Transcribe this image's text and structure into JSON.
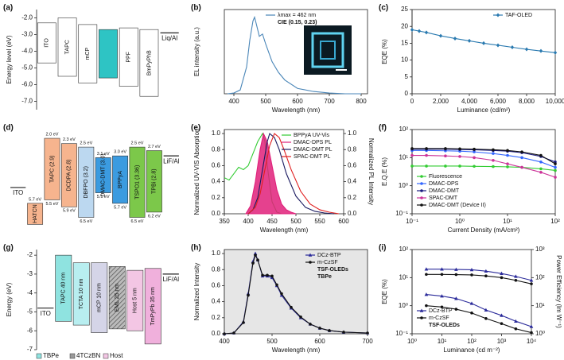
{
  "chart_data": [
    {
      "type": "energy-diagram",
      "panel_label": "(a)",
      "ylabel": "Energy level (eV)",
      "ylim": [
        -7.5,
        -1.5
      ],
      "yticks": [
        {
          "value": -2,
          "label": "-2.0"
        },
        {
          "value": -3,
          "label": "-3.0"
        },
        {
          "value": -4,
          "label": "-4.0"
        },
        {
          "value": -5,
          "label": "-5.0"
        },
        {
          "value": -6,
          "label": "-6.0"
        },
        {
          "value": -7,
          "label": "-7.0"
        }
      ],
      "layers": [
        {
          "name": "ITO",
          "top": -2.3,
          "bottom": -4.7,
          "color": "#ffffff"
        },
        {
          "name": "TAPC",
          "top": -2.0,
          "bottom": -5.5,
          "color": "#ffffff"
        },
        {
          "name": "mCP",
          "top": -2.4,
          "bottom": -5.9,
          "color": "#ffffff"
        },
        {
          "top": -2.7,
          "bottom": -5.6,
          "color": "#2ec4c4"
        },
        {
          "name": "PPF",
          "top": -2.6,
          "bottom": -6.1,
          "color": "#ffffff"
        },
        {
          "name": "BmPyPhB",
          "top": -2.7,
          "bottom": -6.7,
          "color": "#ffffff"
        },
        {
          "name": "Liq/Al",
          "top": -2.9,
          "bottom": null,
          "color": "#222222"
        }
      ]
    },
    {
      "type": "line",
      "panel_label": "(b)",
      "xlabel": "Wavelength (nm)",
      "ylabel": "EL intensity (a.u.)",
      "xlim": [
        370,
        820
      ],
      "ylim": [
        0,
        1.1
      ],
      "xticks": [
        400,
        500,
        600,
        700,
        800
      ],
      "legend": "upper center",
      "x": [
        380,
        400,
        420,
        440,
        450,
        460,
        465,
        470,
        480,
        490,
        500,
        520,
        540,
        560,
        600,
        650,
        700,
        750,
        800
      ],
      "series": [
        {
          "name": "λmax = 462 nm",
          "color": "#4a86b8",
          "values": [
            0,
            0.01,
            0.05,
            0.35,
            0.7,
            0.95,
            1.0,
            0.92,
            0.75,
            0.78,
            0.65,
            0.42,
            0.28,
            0.18,
            0.07,
            0.03,
            0.01,
            0,
            0
          ]
        }
      ],
      "annotations": [
        "CIE (0.15, 0.23)"
      ]
    },
    {
      "type": "line",
      "panel_label": "(c)",
      "xlabel": "Luminance (cd/m²)",
      "ylabel": "EQE (%)",
      "xlim": [
        0,
        10000
      ],
      "ylim": [
        0,
        25
      ],
      "xticks": [
        0,
        {
          "value": 2000,
          "label": "2,000"
        },
        {
          "value": 4000,
          "label": "4,000"
        },
        {
          "value": 6000,
          "label": "6,000"
        },
        {
          "value": 8000,
          "label": "8,000"
        },
        {
          "value": 10000,
          "label": "10,000"
        }
      ],
      "yticks": [
        0,
        5,
        10,
        15,
        20,
        25
      ],
      "legend": "upper right",
      "x": [
        0,
        500,
        1000,
        2000,
        3000,
        4000,
        5000,
        6000,
        7000,
        8000,
        9000,
        10000
      ],
      "series": [
        {
          "name": "TAF-OLED",
          "color": "#2a7ab0",
          "marker": "diamond",
          "values": [
            19,
            18.6,
            18.2,
            17.2,
            16.4,
            15.7,
            15,
            14.4,
            13.8,
            13.2,
            12.7,
            12.2
          ]
        }
      ]
    },
    {
      "type": "energy-diagram",
      "panel_label": "(d)",
      "ylim": [
        7.2,
        1.5
      ],
      "layers": [
        {
          "name": "ITO",
          "top": 4.8,
          "bottom": null,
          "color": "#222222"
        },
        {
          "name": "HATCN",
          "top": 5.7,
          "bottom": 6.9,
          "color": "#f6b48e",
          "top_label": "5.7 eV"
        },
        {
          "name": "TAPC (2.9)",
          "top": 2.0,
          "bottom": 5.5,
          "color": "#f6b48e",
          "top_label": "2.0 eV",
          "bottom_label": "5.5 eV"
        },
        {
          "name": "DCDPA (2.8)",
          "top": 2.3,
          "bottom": 5.9,
          "color": "#f6b48e",
          "top_label": "2.3 eV",
          "bottom_label": "5.9 eV"
        },
        {
          "name": "DBFPO (3.2)",
          "top": 2.5,
          "bottom": 6.5,
          "color": "#bcd8f0",
          "top_label": "2.5 eV",
          "bottom_label": "6.5 eV"
        },
        {
          "name": "DMAC-DMT (3.0)",
          "top": 3.1,
          "bottom": 5.1,
          "color": "#3b9be0",
          "top_label": "3.1 eV",
          "bottom_label": "5.1 eV"
        },
        {
          "name": "BPPyA",
          "top": 3.0,
          "bottom": 5.7,
          "color": "#3b9be0",
          "top_label": "3.0 eV",
          "bottom_label": "5.7 eV"
        },
        {
          "name": "TSPO1 (3.36)",
          "top": 2.5,
          "bottom": 6.5,
          "color": "#7cc84a",
          "top_label": "2.5 eV",
          "bottom_label": "6.5 eV"
        },
        {
          "name": "TPBi (2.8)",
          "top": 2.7,
          "bottom": 6.2,
          "color": "#7cc84a",
          "top_label": "2.7 eV",
          "bottom_label": "6.2 eV"
        },
        {
          "name": "LiF/Al",
          "top": 3.0,
          "bottom": null,
          "color": "#222222"
        }
      ]
    },
    {
      "type": "line",
      "panel_label": "(e)",
      "xlabel": "Wavelength (nm)",
      "ylabel": "Normalized UV-VIS Absorption",
      "y2label": "Normalized PL Intensity",
      "xlim": [
        350,
        600
      ],
      "ylim": [
        0,
        1.05
      ],
      "y2lim": [
        0,
        1.05
      ],
      "xticks": [
        350,
        400,
        450,
        500,
        550,
        600
      ],
      "yticks": [
        {
          "value": 0,
          "label": "0.0"
        },
        {
          "value": 0.2,
          "label": "0.2"
        },
        {
          "value": 0.4,
          "label": "0.4"
        },
        {
          "value": 0.6,
          "label": "0.6"
        },
        {
          "value": 0.8,
          "label": "0.8"
        },
        {
          "value": 1,
          "label": "1.0"
        }
      ],
      "y2ticks": [
        {
          "value": 0,
          "label": "0.0"
        },
        {
          "value": 0.2,
          "label": "0.2"
        },
        {
          "value": 0.4,
          "label": "0.4"
        },
        {
          "value": 0.6,
          "label": "0.6"
        },
        {
          "value": 0.8,
          "label": "0.8"
        },
        {
          "value": 1,
          "label": "1.0"
        }
      ],
      "legend": "upper right",
      "series": [
        {
          "name": "BPPyA UV-Vis",
          "color": "#33cc33",
          "x": [
            350,
            360,
            370,
            380,
            390,
            400,
            410,
            420,
            430,
            435,
            440,
            450,
            460,
            470
          ],
          "values": [
            0.45,
            0.42,
            0.5,
            0.58,
            0.55,
            0.6,
            0.75,
            0.9,
            1.0,
            0.9,
            0.6,
            0.15,
            0.02,
            0
          ]
        },
        {
          "name": "DMAC-DPS PL",
          "color": "#e0207a",
          "fill": true,
          "axis": "y2",
          "x": [
            395,
            405,
            415,
            425,
            432,
            440,
            450,
            460,
            470,
            480,
            490,
            500
          ],
          "values": [
            0,
            0.1,
            0.4,
            0.8,
            1.0,
            0.9,
            0.6,
            0.3,
            0.12,
            0.05,
            0.02,
            0
          ]
        },
        {
          "name": "DMAC-DMT PL",
          "color": "#1a1a60",
          "axis": "y2",
          "x": [
            400,
            410,
            420,
            430,
            440,
            445,
            455,
            465,
            480,
            500,
            520,
            540,
            560,
            580
          ],
          "values": [
            0,
            0.05,
            0.2,
            0.55,
            0.9,
            1.0,
            0.95,
            0.8,
            0.5,
            0.22,
            0.08,
            0.03,
            0.01,
            0
          ]
        },
        {
          "name": "SPAC-DMT PL",
          "color": "#e02020",
          "axis": "y2",
          "x": [
            400,
            415,
            425,
            435,
            445,
            455,
            465,
            475,
            490,
            510,
            530,
            550,
            570,
            590
          ],
          "values": [
            0,
            0.08,
            0.25,
            0.55,
            0.85,
            1.0,
            0.95,
            0.8,
            0.55,
            0.28,
            0.12,
            0.05,
            0.02,
            0
          ]
        }
      ]
    },
    {
      "type": "line",
      "panel_label": "(f)",
      "xlabel": "Current Density (mA/cm²)",
      "ylabel": "E.Q.E (%)",
      "xscale": "log",
      "yscale": "log",
      "xlim": [
        0.1,
        100
      ],
      "ylim": [
        0.1,
        100
      ],
      "xticks": [
        {
          "value": 0.1,
          "label": "10⁻¹"
        },
        {
          "value": 1,
          "label": "10⁰"
        },
        {
          "value": 10,
          "label": "10¹"
        },
        {
          "value": 100,
          "label": "10²"
        }
      ],
      "yticks": [
        {
          "value": 0.1,
          "label": "10⁻¹"
        },
        {
          "value": 1,
          "label": "10⁰"
        },
        {
          "value": 10,
          "label": "10¹"
        },
        {
          "value": 100,
          "label": "10²"
        }
      ],
      "legend": "lower left",
      "x": [
        0.1,
        0.2,
        0.5,
        1,
        2,
        5,
        10,
        20,
        50,
        100
      ],
      "series": [
        {
          "name": "Fluorescence",
          "color": "#33cc33",
          "marker": "circle",
          "values": [
            5,
            5,
            5,
            5,
            4.9,
            4.8,
            4.7,
            4.5,
            4,
            3.5
          ]
        },
        {
          "name": "DMAC-DPS",
          "color": "#3366ff",
          "marker": "circle",
          "values": [
            18,
            18,
            17.5,
            17,
            16,
            14,
            12,
            10,
            7,
            4.5
          ]
        },
        {
          "name": "DMAC-DMT",
          "color": "#1a1a80",
          "marker": "circle",
          "values": [
            20,
            20,
            20,
            19.5,
            19,
            18,
            17,
            15,
            11,
            7
          ]
        },
        {
          "name": "SPAC-DMT",
          "color": "#cc3399",
          "marker": "circle",
          "values": [
            12,
            12,
            11.5,
            11,
            10,
            8,
            6,
            4.5,
            3,
            2
          ]
        },
        {
          "name": "DMAC-DMT (Device II)",
          "color": "#111111",
          "marker": "circle",
          "values": [
            21,
            21,
            21,
            20.5,
            20,
            19,
            18,
            16,
            12,
            6
          ]
        }
      ]
    },
    {
      "type": "energy-diagram",
      "panel_label": "(g)",
      "ylabel": "Energy (eV)",
      "ylim": [
        -7,
        -1.7
      ],
      "yticks": [
        -2,
        -3,
        -4,
        -5,
        -6,
        -7
      ],
      "layers": [
        {
          "name": "ITO",
          "top": -4.8,
          "bottom": null,
          "color": "#222222"
        },
        {
          "name": "TAPC 40 nm",
          "top": -2.0,
          "bottom": -5.5,
          "color": "#8fe3e0"
        },
        {
          "name": "TCTA 10 nm",
          "top": -2.4,
          "bottom": -5.7,
          "color": "#b8eef0"
        },
        {
          "name": "mCP 10 nm",
          "top": -2.4,
          "bottom": -6.1,
          "color": "#d5d5e8"
        },
        {
          "name": "EML 25 nm",
          "top": -2.6,
          "bottom": -5.9,
          "color": "#9a9a9a",
          "pattern": "hatch"
        },
        {
          "name": "Host 5 nm",
          "top": -2.8,
          "bottom": -6.0,
          "color": "#f3c6e4"
        },
        {
          "name": "TmPyPb 35 nm",
          "top": -2.7,
          "bottom": -6.7,
          "color": "#f0b0dc"
        },
        {
          "name": "LiF/Al",
          "top": -3.0,
          "bottom": null,
          "color": "#222222"
        }
      ],
      "legend_items": [
        {
          "name": "TBPe",
          "color": "#8fe3e0"
        },
        {
          "name": "4TCzBN",
          "color": "#9a9a9a"
        },
        {
          "name": "Host",
          "color": "#f3c6e4"
        }
      ]
    },
    {
      "type": "line",
      "panel_label": "(h)",
      "xlabel": "Wavelength (nm)",
      "ylabel": "Normalized Intensity",
      "xlim": [
        400,
        700
      ],
      "ylim": [
        0,
        1.05
      ],
      "background": "#e6e6e6",
      "xticks": [
        400,
        500,
        600,
        700
      ],
      "yticks": [
        {
          "value": 0,
          "label": "0.0"
        },
        {
          "value": 0.2,
          "label": "0.2"
        },
        {
          "value": 0.4,
          "label": "0.4"
        },
        {
          "value": 0.6,
          "label": "0.6"
        },
        {
          "value": 0.8,
          "label": "0.8"
        },
        {
          "value": 1,
          "label": "1.0"
        }
      ],
      "legend": "upper right",
      "x": [
        400,
        420,
        440,
        450,
        460,
        465,
        470,
        480,
        490,
        500,
        510,
        520,
        540,
        560,
        580,
        600,
        620,
        650,
        700
      ],
      "series": [
        {
          "name": "DCz-BTP",
          "color": "#2a2a9a",
          "marker": "triangle",
          "values": [
            0,
            0.01,
            0.15,
            0.5,
            0.9,
            1.0,
            0.92,
            0.72,
            0.72,
            0.7,
            0.6,
            0.48,
            0.32,
            0.2,
            0.12,
            0.07,
            0.04,
            0.02,
            0.01
          ]
        },
        {
          "name": "m-CzSF",
          "color": "#111111",
          "marker": "circle",
          "values": [
            0,
            0.01,
            0.14,
            0.48,
            0.88,
            0.98,
            0.92,
            0.73,
            0.73,
            0.72,
            0.61,
            0.5,
            0.33,
            0.21,
            0.12,
            0.07,
            0.04,
            0.02,
            0.01
          ]
        }
      ],
      "annotations": [
        "TSF-OLEDs",
        "TBPe"
      ]
    },
    {
      "type": "line",
      "panel_label": "(i)",
      "xlabel": "Luminance (cd m⁻²)",
      "ylabel": "EQE (%)",
      "y2label": "Power Efficiency (lm W⁻¹)",
      "xscale": "log",
      "yscale": "log",
      "y2scale": "log",
      "xlim": [
        1,
        10000
      ],
      "ylim": [
        0.1,
        100
      ],
      "y2lim": [
        1,
        1000
      ],
      "xticks": [
        {
          "value": 1,
          "label": "10⁰"
        },
        {
          "value": 10,
          "label": "10¹"
        },
        {
          "value": 100,
          "label": "10²"
        },
        {
          "value": 1000,
          "label": "10³"
        },
        {
          "value": 10000,
          "label": "10⁴"
        }
      ],
      "yticks": [
        {
          "value": 0.1,
          "label": "10⁻¹"
        },
        {
          "value": 1,
          "label": "10⁰"
        },
        {
          "value": 10,
          "label": "10¹"
        },
        {
          "value": 100,
          "label": "10²"
        }
      ],
      "y2ticks": [
        {
          "value": 1,
          "label": "10⁰"
        },
        {
          "value": 10,
          "label": "10¹"
        },
        {
          "value": 100,
          "label": "10²"
        },
        {
          "value": 1000,
          "label": "10³"
        }
      ],
      "legend": "lower left",
      "x": [
        3,
        10,
        30,
        100,
        300,
        1000,
        3000,
        10000
      ],
      "series": [
        {
          "name": "DCz-BTP",
          "color": "#2a2a9a",
          "marker": "triangle",
          "values": [
            20,
            20,
            19.5,
            19,
            17,
            14,
            11,
            8
          ]
        },
        {
          "name": "m-CzSF",
          "color": "#111111",
          "marker": "circle",
          "values": [
            13,
            13,
            12.8,
            12.5,
            11.5,
            10,
            8,
            6
          ]
        },
        {
          "color": "#2a2a9a",
          "marker": "triangle",
          "axis": "y2",
          "values": [
            25,
            22,
            18,
            12,
            7,
            4.5,
            2.8,
            1.8
          ]
        },
        {
          "color": "#111111",
          "marker": "circle",
          "axis": "y2",
          "values": [
            10,
            9,
            7.5,
            5.5,
            3.5,
            2.3,
            1.5,
            1.1
          ]
        }
      ],
      "annotations": [
        "TSF-OLEDs"
      ]
    }
  ]
}
